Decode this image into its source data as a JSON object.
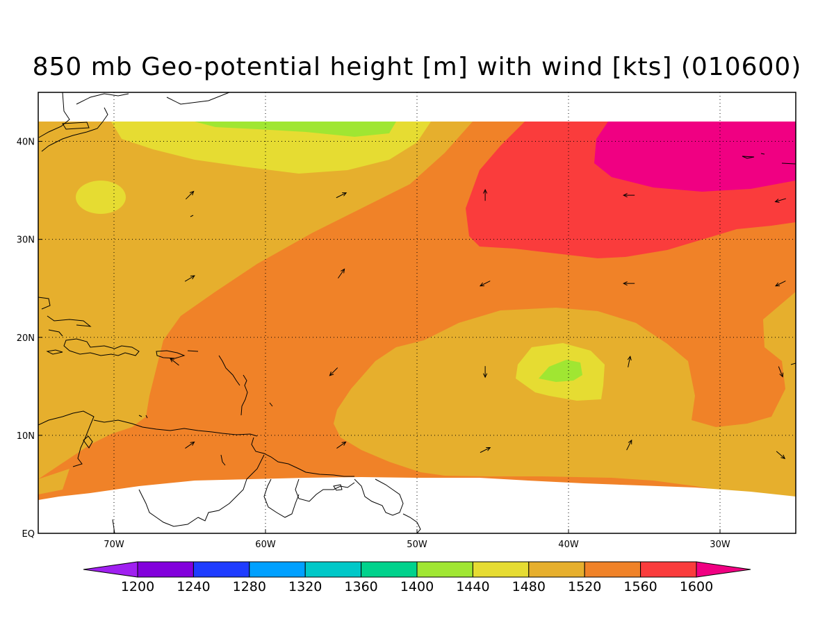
{
  "title": "850 mb Geo-potential height [m] with wind [kts] (010600)",
  "map": {
    "lon_range": [
      -75,
      -25
    ],
    "lat_range": [
      0,
      45
    ],
    "data_lat_range": [
      5,
      42
    ],
    "lon_ticks": [
      {
        "value": -70,
        "label": "70W"
      },
      {
        "value": -60,
        "label": "60W"
      },
      {
        "value": -50,
        "label": "50W"
      },
      {
        "value": -40,
        "label": "40W"
      },
      {
        "value": -30,
        "label": "30W"
      }
    ],
    "lat_ticks": [
      {
        "value": 0,
        "label": "EQ"
      },
      {
        "value": 10,
        "label": "10N"
      },
      {
        "value": 20,
        "label": "20N"
      },
      {
        "value": 30,
        "label": "30N"
      },
      {
        "value": 40,
        "label": "40N"
      }
    ]
  },
  "colorbar": {
    "levels": [
      "1200",
      "1240",
      "1280",
      "1320",
      "1360",
      "1400",
      "1440",
      "1480",
      "1520",
      "1560",
      "1600"
    ],
    "colors": [
      "#a020f0",
      "#8200dc",
      "#1e3cff",
      "#00a0ff",
      "#00c8c8",
      "#00d28c",
      "#a0e632",
      "#e6dc32",
      "#e6af2d",
      "#f08228",
      "#fa3c3c",
      "#f00082"
    ]
  },
  "chart_data": {
    "type": "heatmap",
    "title": "850 mb Geo-potential height [m] with wind [kts] (010600)",
    "xlabel": "",
    "ylabel": "",
    "x_range": [
      -75,
      -25
    ],
    "y_range": [
      0,
      45
    ],
    "levels": [
      1200,
      1240,
      1280,
      1320,
      1360,
      1400,
      1440,
      1480,
      1520,
      1560,
      1600
    ],
    "features": [
      {
        "band": "1440-1480",
        "center": [
          -40.5,
          16.5
        ]
      },
      {
        "band": "1440-1480",
        "center": [
          -57,
          41.5
        ]
      },
      {
        "band": "1480-1520",
        "center": [
          -40,
          16.5
        ]
      },
      {
        "band": "1480-1520",
        "center": [
          -69.5,
          34.3
        ]
      },
      {
        "band": "1480-1520",
        "center": [
          -58,
          39.5
        ]
      },
      {
        "band": ">1600",
        "center": [
          -31,
          39
        ]
      },
      {
        "band": "1560-1600",
        "center": [
          -36,
          33
        ]
      }
    ],
    "wind_vectors": [
      {
        "lon": -65,
        "lat": 34.5,
        "u": 1,
        "v": 1
      },
      {
        "lon": -55,
        "lat": 34.5,
        "u": 1,
        "v": 0.5
      },
      {
        "lon": -45.5,
        "lat": 34.5,
        "u": 0,
        "v": 1
      },
      {
        "lon": -36,
        "lat": 34.5,
        "u": -1,
        "v": 0
      },
      {
        "lon": -26,
        "lat": 34,
        "u": -1,
        "v": -0.3
      },
      {
        "lon": -65,
        "lat": 26,
        "u": 1,
        "v": 0.6
      },
      {
        "lon": -55,
        "lat": 26.5,
        "u": 0.7,
        "v": 1
      },
      {
        "lon": -45.5,
        "lat": 25.5,
        "u": -1,
        "v": -0.5
      },
      {
        "lon": -36,
        "lat": 25.5,
        "u": -1,
        "v": 0
      },
      {
        "lon": -26,
        "lat": 25.5,
        "u": -1,
        "v": -0.5
      },
      {
        "lon": -66,
        "lat": 17.5,
        "u": -1,
        "v": 0.8
      },
      {
        "lon": -55.5,
        "lat": 16.5,
        "u": -0.7,
        "v": -0.7
      },
      {
        "lon": -45.5,
        "lat": 16.5,
        "u": 0,
        "v": -1
      },
      {
        "lon": -36,
        "lat": 17.5,
        "u": 0.2,
        "v": 1
      },
      {
        "lon": -26,
        "lat": 16.5,
        "u": 0.4,
        "v": -1
      },
      {
        "lon": -65,
        "lat": 9,
        "u": 1,
        "v": 0.7
      },
      {
        "lon": -55,
        "lat": 9,
        "u": 1,
        "v": 0.7
      },
      {
        "lon": -45.5,
        "lat": 8.5,
        "u": 1,
        "v": 0.5
      },
      {
        "lon": -36,
        "lat": 9,
        "u": 0.5,
        "v": 1
      },
      {
        "lon": -26,
        "lat": 8,
        "u": 0.8,
        "v": -0.7
      }
    ]
  }
}
